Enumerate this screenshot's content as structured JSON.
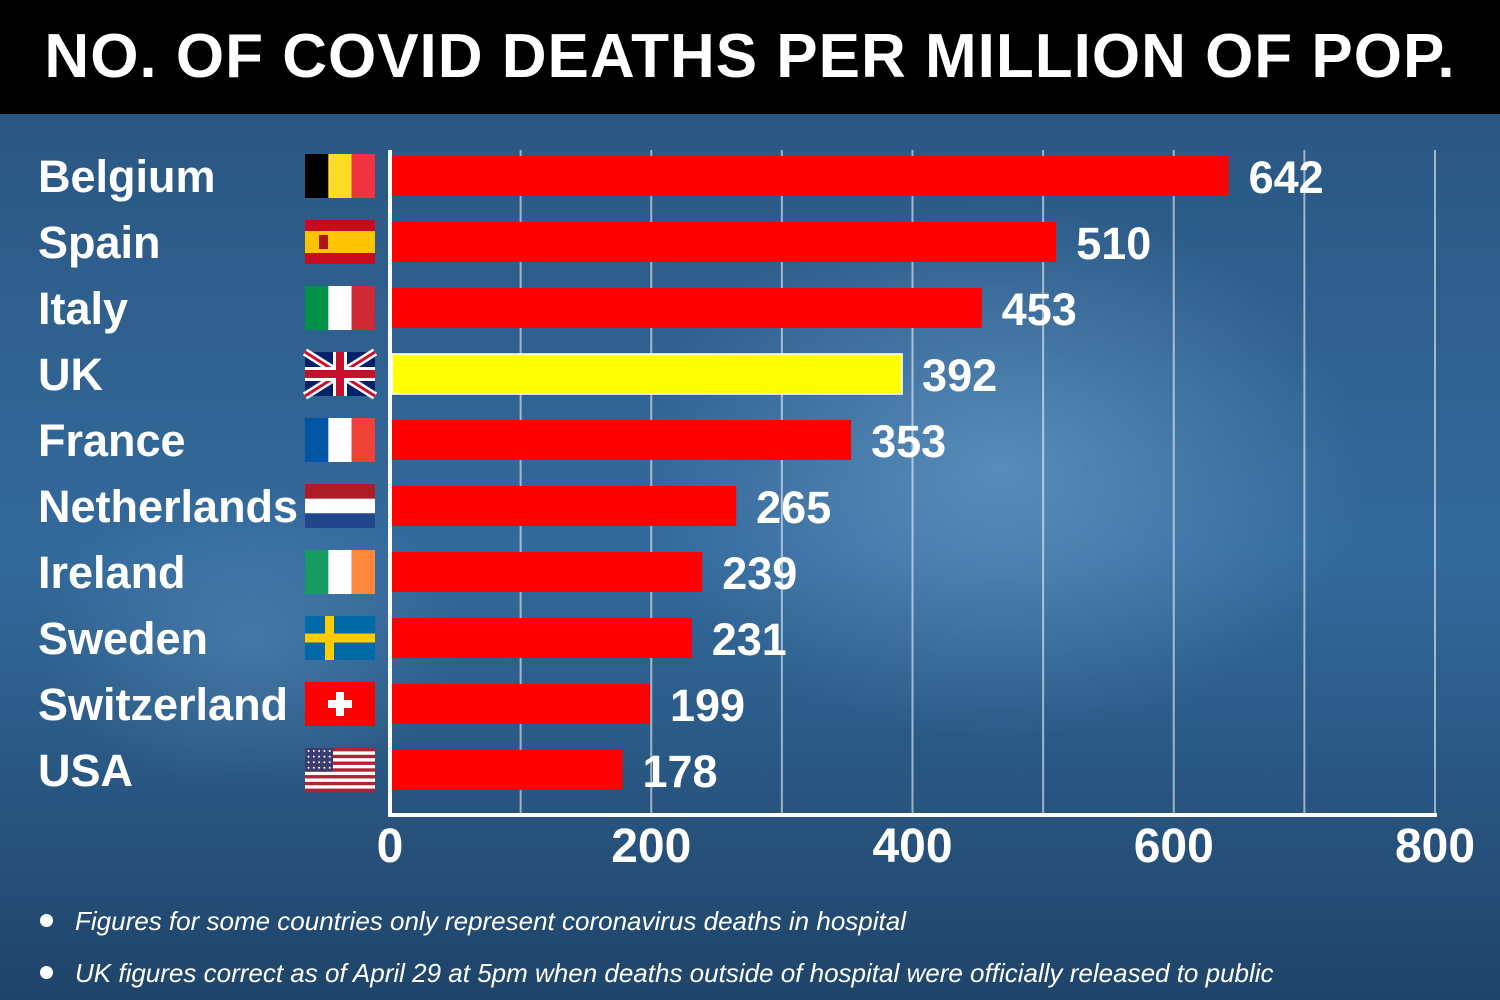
{
  "title": "NO. OF COVID DEATHS PER MILLION OF POP.",
  "chart_data": {
    "type": "bar",
    "orientation": "horizontal",
    "categories": [
      "Belgium",
      "Spain",
      "Italy",
      "UK",
      "France",
      "Netherlands",
      "Ireland",
      "Sweden",
      "Switzerland",
      "USA"
    ],
    "values": [
      642,
      510,
      453,
      392,
      353,
      265,
      239,
      231,
      199,
      178
    ],
    "value_labels": [
      "642",
      "510",
      "453",
      "392",
      "353",
      "265",
      "239",
      "231",
      "199",
      "178"
    ],
    "flag_icons": [
      "flag-belgium-icon",
      "flag-spain-icon",
      "flag-italy-icon",
      "flag-uk-icon",
      "flag-france-icon",
      "flag-netherlands-icon",
      "flag-ireland-icon",
      "flag-sweden-icon",
      "flag-switzerland-icon",
      "flag-usa-icon"
    ],
    "highlight_category": "UK",
    "bar_color": "#ff0000",
    "highlight_color": "#ffff00",
    "xlim": [
      0,
      800
    ],
    "x_ticks": [
      0,
      200,
      400,
      600,
      800
    ],
    "x_tick_labels": [
      "0",
      "200",
      "400",
      "600",
      "800"
    ],
    "grid": true,
    "xlabel": "",
    "ylabel": ""
  },
  "footnotes": [
    "Figures for some countries only represent coronavirus deaths in hospital",
    "UK figures correct as of April 29 at 5pm when deaths outside of hospital were officially released to public"
  ]
}
